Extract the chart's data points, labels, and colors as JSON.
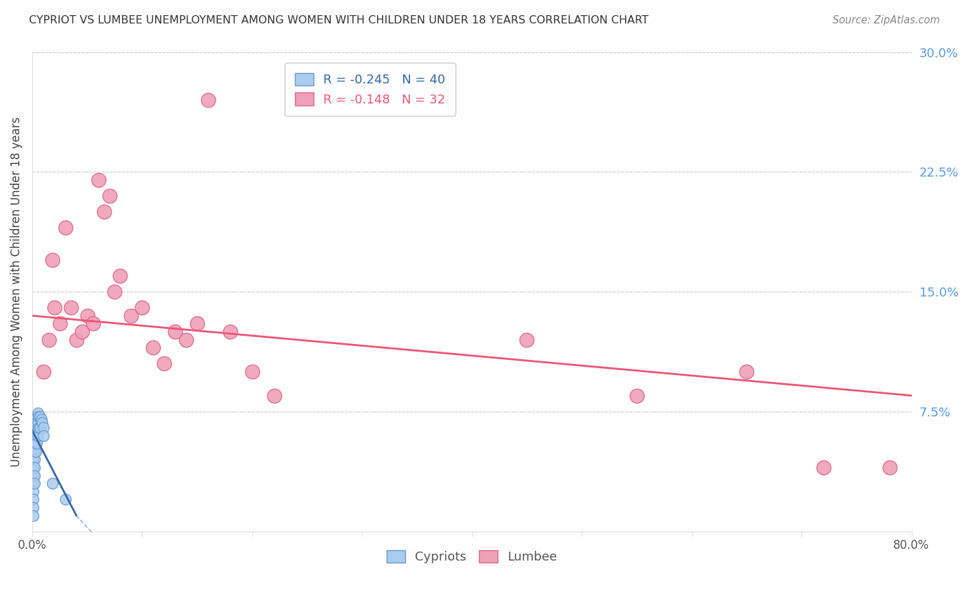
{
  "title": "CYPRIOT VS LUMBEE UNEMPLOYMENT AMONG WOMEN WITH CHILDREN UNDER 18 YEARS CORRELATION CHART",
  "source": "Source: ZipAtlas.com",
  "ylabel": "Unemployment Among Women with Children Under 18 years",
  "xlim": [
    0.0,
    0.8
  ],
  "ylim": [
    0.0,
    0.3
  ],
  "yticks": [
    0.075,
    0.15,
    0.225,
    0.3
  ],
  "ytick_labels": [
    "7.5%",
    "15.0%",
    "22.5%",
    "30.0%"
  ],
  "xticks": [
    0.0,
    0.1,
    0.2,
    0.3,
    0.4,
    0.5,
    0.6,
    0.7,
    0.8
  ],
  "xtick_labels": [
    "0.0%",
    "",
    "",
    "",
    "",
    "",
    "",
    "",
    "80.0%"
  ],
  "background_color": "#ffffff",
  "grid_color": "#cccccc",
  "cypriot_color": "#aaccee",
  "lumbee_color": "#f0a0b8",
  "cypriot_edge_color": "#6699cc",
  "lumbee_edge_color": "#dd6688",
  "trend_cypriot_color": "#3366aa",
  "trend_lumbee_color": "#ee5577",
  "R_cypriot": -0.245,
  "N_cypriot": 40,
  "R_lumbee": -0.148,
  "N_lumbee": 32,
  "cypriot_x": [
    0.001,
    0.001,
    0.001,
    0.001,
    0.001,
    0.001,
    0.001,
    0.001,
    0.001,
    0.001,
    0.002,
    0.002,
    0.002,
    0.002,
    0.002,
    0.002,
    0.002,
    0.002,
    0.003,
    0.003,
    0.003,
    0.003,
    0.003,
    0.004,
    0.004,
    0.004,
    0.004,
    0.005,
    0.005,
    0.005,
    0.006,
    0.006,
    0.007,
    0.007,
    0.008,
    0.009,
    0.01,
    0.01,
    0.018,
    0.03
  ],
  "cypriot_y": [
    0.055,
    0.05,
    0.045,
    0.04,
    0.035,
    0.03,
    0.025,
    0.02,
    0.015,
    0.01,
    0.065,
    0.06,
    0.055,
    0.05,
    0.045,
    0.04,
    0.035,
    0.03,
    0.07,
    0.065,
    0.06,
    0.055,
    0.05,
    0.072,
    0.068,
    0.062,
    0.055,
    0.074,
    0.068,
    0.06,
    0.072,
    0.065,
    0.072,
    0.065,
    0.07,
    0.068,
    0.065,
    0.06,
    0.03,
    0.02
  ],
  "lumbee_x": [
    0.01,
    0.015,
    0.018,
    0.02,
    0.025,
    0.03,
    0.035,
    0.04,
    0.045,
    0.05,
    0.055,
    0.06,
    0.065,
    0.07,
    0.075,
    0.08,
    0.09,
    0.1,
    0.11,
    0.12,
    0.13,
    0.14,
    0.15,
    0.16,
    0.18,
    0.2,
    0.22,
    0.45,
    0.55,
    0.65,
    0.72,
    0.78
  ],
  "lumbee_y": [
    0.1,
    0.12,
    0.17,
    0.14,
    0.13,
    0.19,
    0.14,
    0.12,
    0.125,
    0.135,
    0.13,
    0.22,
    0.2,
    0.21,
    0.15,
    0.16,
    0.135,
    0.14,
    0.115,
    0.105,
    0.125,
    0.12,
    0.13,
    0.27,
    0.125,
    0.1,
    0.085,
    0.12,
    0.085,
    0.1,
    0.04,
    0.04
  ],
  "lumbee_trend_x0": 0.0,
  "lumbee_trend_y0": 0.135,
  "lumbee_trend_x1": 0.8,
  "lumbee_trend_y1": 0.085,
  "cypriot_trend_x0": 0.0,
  "cypriot_trend_y0": 0.063,
  "cypriot_trend_x1": 0.04,
  "cypriot_trend_y1": 0.01
}
